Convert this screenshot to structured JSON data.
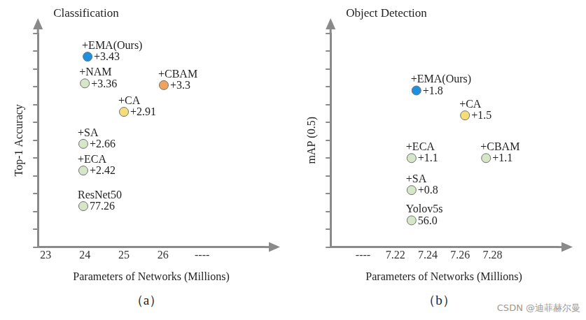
{
  "chart_data": [
    {
      "type": "scatter",
      "title": "Classification",
      "caption": "（a）",
      "x_label": "Parameters of Networks (Millions)",
      "y_label": "Top-1 Accuracy",
      "point_names": [
        "ResNet50",
        "+ECA",
        "+SA",
        "+CA",
        "+CBAM",
        "+NAM",
        "+EMA(Ours)"
      ],
      "annotations": [
        "77.26",
        "+2.42",
        "+2.66",
        "+2.91",
        "+3.3",
        "+3.36",
        "+3.43"
      ],
      "x": [
        23.96,
        23.96,
        23.96,
        25.0,
        26.02,
        24.0,
        24.07
      ],
      "values": [
        2.3,
        4.3,
        5.8,
        7.6,
        9.1,
        9.2,
        10.7
      ],
      "colors": [
        "#d6e6c8",
        "#d6e6c8",
        "#d6e6c8",
        "#f7dc7a",
        "#f0a35e",
        "#d6e6c8",
        "#1e90e0"
      ],
      "xlim": [
        22.8,
        28.6
      ],
      "xticks": [
        23,
        24,
        25,
        26,
        {
          "value": 27,
          "label": "----"
        }
      ],
      "ylim": [
        0,
        12
      ],
      "yticks": [
        0,
        1,
        2,
        3,
        4,
        5,
        6,
        7,
        8,
        9,
        10,
        11,
        12
      ],
      "grid": false,
      "tick_labels": "x"
    },
    {
      "type": "scatter",
      "title": "Object Detection",
      "caption": "（b）",
      "x_label": "Parameters of Networks (Millions)",
      "y_label": "mAP (0.5)",
      "point_names": [
        "Yolov5s",
        "+SA",
        "+ECA",
        "+CBAM",
        "+CA",
        "+EMA(Ours)"
      ],
      "annotations": [
        "56.0",
        "+0.8",
        "+1.1",
        "+1.1",
        "+1.5",
        "+1.8"
      ],
      "x": [
        7.23,
        7.23,
        7.23,
        7.276,
        7.263,
        7.233
      ],
      "values": [
        1.5,
        3.2,
        5.0,
        5.0,
        7.4,
        8.8
      ],
      "colors": [
        "#d6e6c8",
        "#d6e6c8",
        "#d6e6c8",
        "#d6e6c8",
        "#f7dc7a",
        "#1e90e0"
      ],
      "xlim": [
        7.18,
        7.32
      ],
      "xticks": [
        {
          "value": 7.2,
          "label": "----"
        },
        7.22,
        7.24,
        7.26,
        7.28
      ],
      "ylim": [
        0,
        12
      ],
      "yticks": [
        0,
        1,
        2,
        3,
        4,
        5,
        6,
        7,
        8,
        9,
        10,
        11,
        12
      ],
      "grid": false,
      "tick_labels": "x"
    }
  ],
  "watermark": "CSDN @迪菲赫尔曼"
}
